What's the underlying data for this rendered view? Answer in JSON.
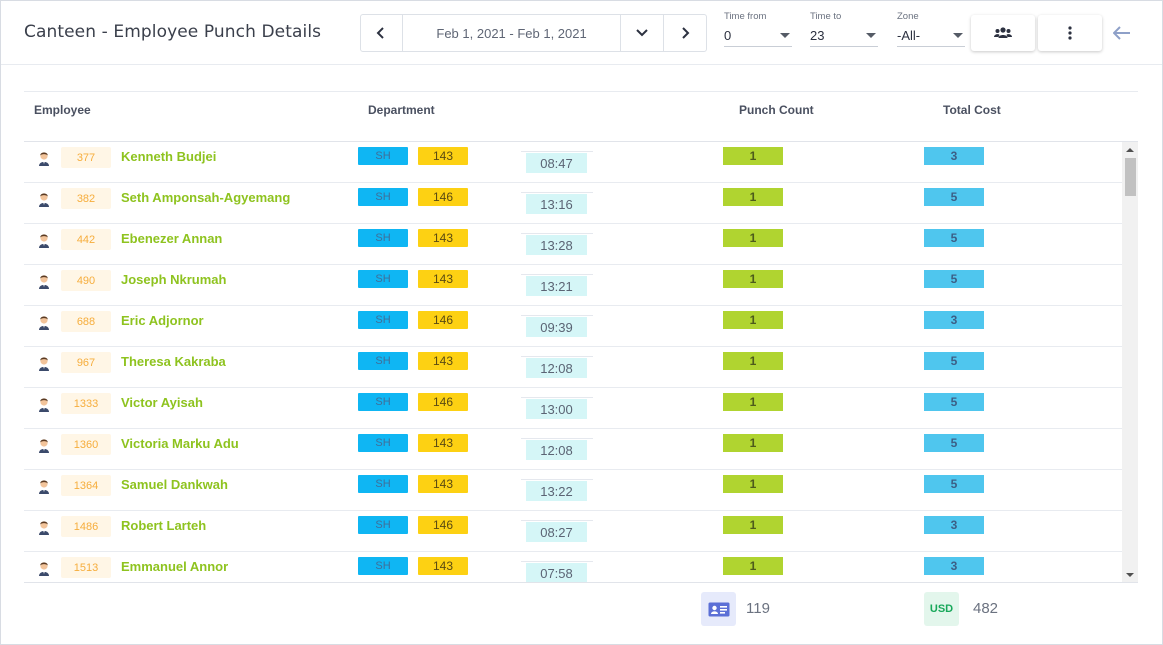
{
  "header": {
    "title": "Canteen - Employee Punch Details",
    "date_range": "Feb 1, 2021 - Feb 1, 2021",
    "time_from": {
      "label": "Time from",
      "value": "0"
    },
    "time_to": {
      "label": "Time to",
      "value": "23"
    },
    "zone": {
      "label": "Zone",
      "value": "-All-"
    }
  },
  "columns": {
    "employee": "Employee",
    "department": "Department",
    "punch_count": "Punch Count",
    "total_cost": "Total Cost"
  },
  "rows": [
    {
      "id": "377",
      "name": "Kenneth Budjei",
      "sh": "SH",
      "dept": "143",
      "time": "08:47",
      "punch": "1",
      "cost": "3"
    },
    {
      "id": "382",
      "name": "Seth Amponsah-Agyemang",
      "sh": "SH",
      "dept": "146",
      "time": "13:16",
      "punch": "1",
      "cost": "5"
    },
    {
      "id": "442",
      "name": "Ebenezer Annan",
      "sh": "SH",
      "dept": "143",
      "time": "13:28",
      "punch": "1",
      "cost": "5"
    },
    {
      "id": "490",
      "name": "Joseph Nkrumah",
      "sh": "SH",
      "dept": "143",
      "time": "13:21",
      "punch": "1",
      "cost": "5"
    },
    {
      "id": "688",
      "name": "Eric Adjornor",
      "sh": "SH",
      "dept": "146",
      "time": "09:39",
      "punch": "1",
      "cost": "3"
    },
    {
      "id": "967",
      "name": "Theresa Kakraba",
      "sh": "SH",
      "dept": "143",
      "time": "12:08",
      "punch": "1",
      "cost": "5"
    },
    {
      "id": "1333",
      "name": "Victor Ayisah",
      "sh": "SH",
      "dept": "146",
      "time": "13:00",
      "punch": "1",
      "cost": "5"
    },
    {
      "id": "1360",
      "name": "Victoria Marku Adu",
      "sh": "SH",
      "dept": "143",
      "time": "12:08",
      "punch": "1",
      "cost": "5"
    },
    {
      "id": "1364",
      "name": "Samuel Dankwah",
      "sh": "SH",
      "dept": "143",
      "time": "13:22",
      "punch": "1",
      "cost": "5"
    },
    {
      "id": "1486",
      "name": "Robert Larteh",
      "sh": "SH",
      "dept": "146",
      "time": "08:27",
      "punch": "1",
      "cost": "3"
    },
    {
      "id": "1513",
      "name": "Emmanuel Annor",
      "sh": "SH",
      "dept": "143",
      "time": "07:58",
      "punch": "1",
      "cost": "3"
    }
  ],
  "footer": {
    "punch_total": "119",
    "currency": "USD",
    "cost_total": "482"
  },
  "icons": [
    "chevron-left-icon",
    "chevron-down-icon",
    "chevron-right-icon",
    "users-icon",
    "more-vertical-icon",
    "arrow-left-icon",
    "employee-avatar-icon",
    "id-card-icon"
  ],
  "colors": {
    "name_green": "#8ec31f",
    "sh_blue": "#0fb6f3",
    "dept_yellow": "#fdd113",
    "punch_green": "#b0d430",
    "cost_blue": "#4fc6ee",
    "id_bg": "#fff6e6"
  }
}
